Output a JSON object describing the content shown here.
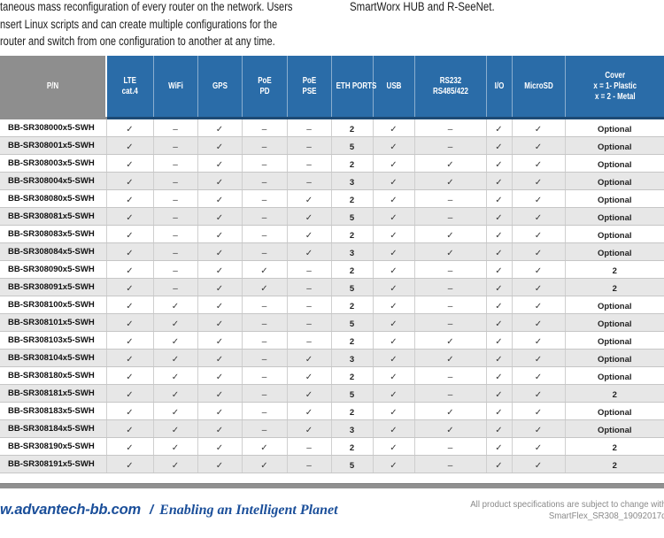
{
  "intro": {
    "left_lines": [
      "taneous mass reconfiguration of every router on the network. Users",
      "nsert Linux scripts and can create multiple configurations for the",
      "router and switch from one configuration to another at any time."
    ],
    "right_line": "SmartWorx HUB and R-SeeNet."
  },
  "table": {
    "columns": [
      {
        "key": "pn",
        "lines": [
          "P/N"
        ]
      },
      {
        "key": "lte",
        "lines": [
          "LTE",
          "cat.4"
        ]
      },
      {
        "key": "wifi",
        "lines": [
          "WiFi"
        ]
      },
      {
        "key": "gps",
        "lines": [
          "GPS"
        ]
      },
      {
        "key": "poe-pd",
        "lines": [
          "PoE",
          "PD"
        ]
      },
      {
        "key": "poe-pse",
        "lines": [
          "PoE",
          "PSE"
        ]
      },
      {
        "key": "eth-ports",
        "lines": [
          "ETH PORTS"
        ]
      },
      {
        "key": "usb",
        "lines": [
          "USB"
        ]
      },
      {
        "key": "rs232",
        "lines": [
          "RS232",
          "RS485/422"
        ]
      },
      {
        "key": "io",
        "lines": [
          "I/O"
        ]
      },
      {
        "key": "microsd",
        "lines": [
          "MicroSD"
        ]
      },
      {
        "key": "cover",
        "lines": [
          "Cover",
          "x = 1- Plastic",
          "x = 2 - Metal"
        ]
      }
    ],
    "rows": [
      {
        "pn": "BB-SR308000x5-SWH",
        "cells": [
          "✓",
          "–",
          "✓",
          "–",
          "–",
          "2",
          "✓",
          "–",
          "✓",
          "✓",
          "Optional"
        ]
      },
      {
        "pn": "BB-SR308001x5-SWH",
        "cells": [
          "✓",
          "–",
          "✓",
          "–",
          "–",
          "5",
          "✓",
          "–",
          "✓",
          "✓",
          "Optional"
        ]
      },
      {
        "pn": "BB-SR308003x5-SWH",
        "cells": [
          "✓",
          "–",
          "✓",
          "–",
          "–",
          "2",
          "✓",
          "✓",
          "✓",
          "✓",
          "Optional"
        ]
      },
      {
        "pn": "BB-SR308004x5-SWH",
        "cells": [
          "✓",
          "–",
          "✓",
          "–",
          "–",
          "3",
          "✓",
          "✓",
          "✓",
          "✓",
          "Optional"
        ]
      },
      {
        "pn": "BB-SR308080x5-SWH",
        "cells": [
          "✓",
          "–",
          "✓",
          "–",
          "✓",
          "2",
          "✓",
          "–",
          "✓",
          "✓",
          "Optional"
        ]
      },
      {
        "pn": "BB-SR308081x5-SWH",
        "cells": [
          "✓",
          "–",
          "✓",
          "–",
          "✓",
          "5",
          "✓",
          "–",
          "✓",
          "✓",
          "Optional"
        ]
      },
      {
        "pn": "BB-SR308083x5-SWH",
        "cells": [
          "✓",
          "–",
          "✓",
          "–",
          "✓",
          "2",
          "✓",
          "✓",
          "✓",
          "✓",
          "Optional"
        ]
      },
      {
        "pn": "BB-SR308084x5-SWH",
        "cells": [
          "✓",
          "–",
          "✓",
          "–",
          "✓",
          "3",
          "✓",
          "✓",
          "✓",
          "✓",
          "Optional"
        ]
      },
      {
        "pn": "BB-SR308090x5-SWH",
        "cells": [
          "✓",
          "–",
          "✓",
          "✓",
          "–",
          "2",
          "✓",
          "–",
          "✓",
          "✓",
          "2"
        ]
      },
      {
        "pn": "BB-SR308091x5-SWH",
        "cells": [
          "✓",
          "–",
          "✓",
          "✓",
          "–",
          "5",
          "✓",
          "–",
          "✓",
          "✓",
          "2"
        ]
      },
      {
        "pn": "BB-SR308100x5-SWH",
        "cells": [
          "✓",
          "✓",
          "✓",
          "–",
          "–",
          "2",
          "✓",
          "–",
          "✓",
          "✓",
          "Optional"
        ]
      },
      {
        "pn": "BB-SR308101x5-SWH",
        "cells": [
          "✓",
          "✓",
          "✓",
          "–",
          "–",
          "5",
          "✓",
          "–",
          "✓",
          "✓",
          "Optional"
        ]
      },
      {
        "pn": "BB-SR308103x5-SWH",
        "cells": [
          "✓",
          "✓",
          "✓",
          "–",
          "–",
          "2",
          "✓",
          "✓",
          "✓",
          "✓",
          "Optional"
        ]
      },
      {
        "pn": "BB-SR308104x5-SWH",
        "cells": [
          "✓",
          "✓",
          "✓",
          "–",
          "✓",
          "3",
          "✓",
          "✓",
          "✓",
          "✓",
          "Optional"
        ]
      },
      {
        "pn": "BB-SR308180x5-SWH",
        "cells": [
          "✓",
          "✓",
          "✓",
          "–",
          "✓",
          "2",
          "✓",
          "–",
          "✓",
          "✓",
          "Optional"
        ]
      },
      {
        "pn": "BB-SR308181x5-SWH",
        "cells": [
          "✓",
          "✓",
          "✓",
          "–",
          "✓",
          "5",
          "✓",
          "–",
          "✓",
          "✓",
          "2"
        ]
      },
      {
        "pn": "BB-SR308183x5-SWH",
        "cells": [
          "✓",
          "✓",
          "✓",
          "–",
          "✓",
          "2",
          "✓",
          "✓",
          "✓",
          "✓",
          "Optional"
        ]
      },
      {
        "pn": "BB-SR308184x5-SWH",
        "cells": [
          "✓",
          "✓",
          "✓",
          "–",
          "✓",
          "3",
          "✓",
          "✓",
          "✓",
          "✓",
          "Optional"
        ]
      },
      {
        "pn": "BB-SR308190x5-SWH",
        "cells": [
          "✓",
          "✓",
          "✓",
          "✓",
          "–",
          "2",
          "✓",
          "–",
          "✓",
          "✓",
          "2"
        ]
      },
      {
        "pn": "BB-SR308191x5-SWH",
        "cells": [
          "✓",
          "✓",
          "✓",
          "✓",
          "–",
          "5",
          "✓",
          "–",
          "✓",
          "✓",
          "2"
        ]
      }
    ]
  },
  "footer": {
    "url": "w.advantech-bb.com",
    "slash": "/",
    "slogan": "Enabling an Intelligent Planet",
    "note_line1": "All product specifications are subject to change with",
    "note_line2": "SmartFlex_SR308_19092017d"
  },
  "colors": {
    "header_blue": "#2a6ca8",
    "header_gray": "#8e8e8e",
    "header_border_navy": "#1d4a74",
    "row_alt_gray": "#e7e7e7",
    "footer_blue": "#1b4f9a",
    "note_gray": "#8a8a8a",
    "divider_gray": "#909090"
  }
}
